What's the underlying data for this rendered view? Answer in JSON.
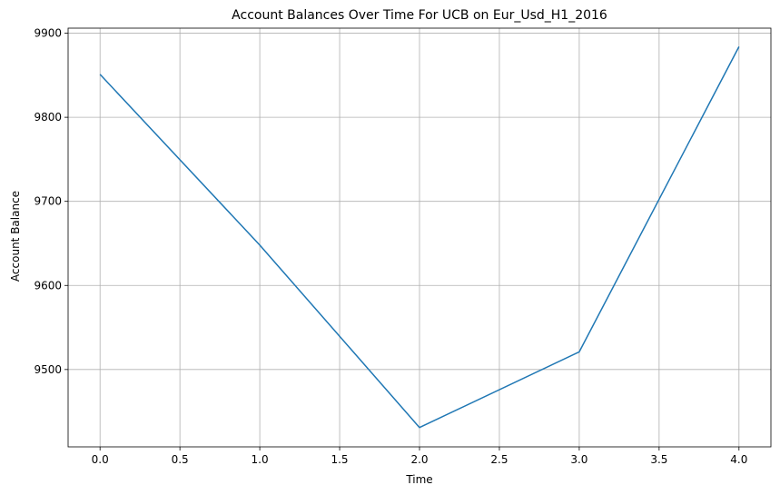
{
  "chart_data": {
    "type": "line",
    "title": "Account Balances Over Time For UCB on Eur_Usd_H1_2016",
    "xlabel": "Time",
    "ylabel": "Account Balance",
    "x": [
      0,
      1,
      2,
      3,
      4
    ],
    "series": [
      {
        "values": [
          9851,
          9648,
          9431,
          9521,
          9884
        ],
        "color": "#1f77b4"
      }
    ],
    "xlim": [
      -0.2,
      4.2
    ],
    "ylim": [
      9408,
      9906
    ],
    "xticks": [
      0.0,
      0.5,
      1.0,
      1.5,
      2.0,
      2.5,
      3.0,
      3.5,
      4.0
    ],
    "xtick_labels": [
      "0.0",
      "0.5",
      "1.0",
      "1.5",
      "2.0",
      "2.5",
      "3.0",
      "3.5",
      "4.0"
    ],
    "yticks": [
      9500,
      9600,
      9700,
      9800,
      9900
    ],
    "ytick_labels": [
      "9500",
      "9600",
      "9700",
      "9800",
      "9900"
    ],
    "grid": true,
    "grid_color": "#b0b0b0",
    "legend": false
  }
}
